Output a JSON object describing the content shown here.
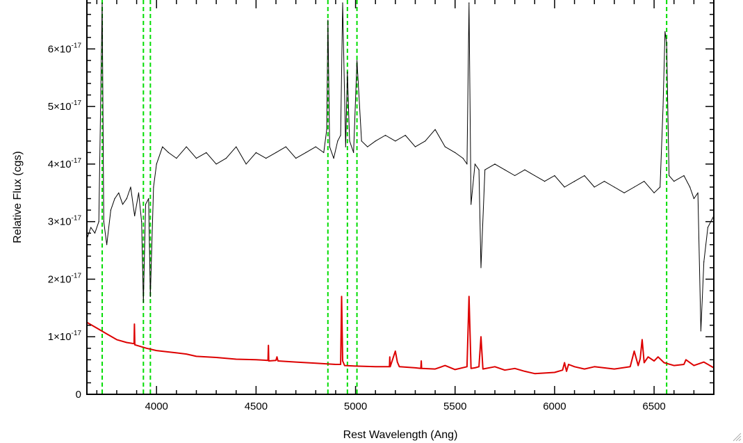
{
  "chart_data": {
    "type": "line",
    "title": "",
    "xlabel": "Rest Wavelength (Ang)",
    "ylabel": "Relative Flux (cgs)",
    "xlim": [
      3650,
      6800
    ],
    "ylim": [
      0,
      6.85e-17
    ],
    "x_ticks": [
      4000,
      4500,
      5000,
      5500,
      6000,
      6500
    ],
    "x_tick_labels": [
      "4000",
      "4500",
      "5000",
      "5500",
      "6000",
      "6500"
    ],
    "y_ticks": [
      0,
      1e-17,
      2e-17,
      3e-17,
      4e-17,
      5e-17,
      6e-17
    ],
    "y_tick_labels": [
      {
        "mantissa": "0",
        "exponent": ""
      },
      {
        "mantissa": "1×10",
        "exponent": "-17"
      },
      {
        "mantissa": "2×10",
        "exponent": "-17"
      },
      {
        "mantissa": "3×10",
        "exponent": "-17"
      },
      {
        "mantissa": "4×10",
        "exponent": "-17"
      },
      {
        "mantissa": "5×10",
        "exponent": "-17"
      },
      {
        "mantissa": "6×10",
        "exponent": "-17"
      }
    ],
    "grid": false,
    "colors": {
      "spectrum": "#000000",
      "error": "#dd0000",
      "lines": "#00dd00"
    },
    "vertical_lines_x": [
      3727,
      3934,
      3969,
      4861,
      4959,
      5007,
      6563
    ],
    "series": [
      {
        "color": "#000000",
        "x": [
          3650,
          3670,
          3690,
          3710,
          3727,
          3735,
          3750,
          3770,
          3790,
          3810,
          3830,
          3850,
          3870,
          3890,
          3910,
          3925,
          3934,
          3945,
          3960,
          3969,
          3985,
          4000,
          4030,
          4060,
          4100,
          4150,
          4200,
          4250,
          4300,
          4350,
          4400,
          4450,
          4500,
          4550,
          4600,
          4650,
          4700,
          4750,
          4800,
          4840,
          4855,
          4861,
          4870,
          4890,
          4910,
          4925,
          4935,
          4950,
          4959,
          4970,
          4990,
          5007,
          5030,
          5060,
          5100,
          5150,
          5200,
          5250,
          5300,
          5350,
          5400,
          5450,
          5500,
          5540,
          5560,
          5570,
          5580,
          5600,
          5620,
          5630,
          5650,
          5700,
          5750,
          5800,
          5850,
          5900,
          5950,
          6000,
          6050,
          6100,
          6150,
          6200,
          6250,
          6300,
          6350,
          6400,
          6450,
          6500,
          6530,
          6545,
          6555,
          6563,
          6575,
          6600,
          6650,
          6680,
          6700,
          6720,
          6735,
          6750,
          6770,
          6800
        ],
        "y": [
          2.7e-17,
          2.9e-17,
          2.8e-17,
          3e-17,
          6.8e-17,
          3e-17,
          2.6e-17,
          3.2e-17,
          3.4e-17,
          3.5e-17,
          3.3e-17,
          3.4e-17,
          3.6e-17,
          3.1e-17,
          3.5e-17,
          3e-17,
          1.6e-17,
          3.3e-17,
          3.4e-17,
          1.7e-17,
          3.6e-17,
          4e-17,
          4.3e-17,
          4.2e-17,
          4.1e-17,
          4.3e-17,
          4.1e-17,
          4.2e-17,
          4e-17,
          4.1e-17,
          4.3e-17,
          4e-17,
          4.2e-17,
          4.1e-17,
          4.2e-17,
          4.3e-17,
          4.1e-17,
          4.2e-17,
          4.3e-17,
          4.2e-17,
          4.6e-17,
          6.5e-17,
          4.3e-17,
          4.1e-17,
          4.4e-17,
          4.5e-17,
          6.8e-17,
          4.3e-17,
          5.6e-17,
          4.4e-17,
          4.2e-17,
          5.8e-17,
          4.4e-17,
          4.3e-17,
          4.4e-17,
          4.5e-17,
          4.4e-17,
          4.5e-17,
          4.3e-17,
          4.4e-17,
          4.6e-17,
          4.3e-17,
          4.2e-17,
          4.1e-17,
          4e-17,
          6.8e-17,
          3.3e-17,
          4e-17,
          3.9e-17,
          2.2e-17,
          3.9e-17,
          4e-17,
          3.9e-17,
          3.8e-17,
          3.9e-17,
          3.8e-17,
          3.7e-17,
          3.8e-17,
          3.6e-17,
          3.7e-17,
          3.8e-17,
          3.6e-17,
          3.7e-17,
          3.6e-17,
          3.5e-17,
          3.6e-17,
          3.7e-17,
          3.5e-17,
          3.6e-17,
          5e-17,
          6.3e-17,
          6.1e-17,
          3.8e-17,
          3.7e-17,
          3.8e-17,
          3.6e-17,
          3.4e-17,
          3.5e-17,
          1.1e-17,
          2.3e-17,
          2.9e-17,
          3.1e-17
        ]
      },
      {
        "color": "#dd0000",
        "x": [
          3650,
          3700,
          3750,
          3800,
          3850,
          3887,
          3889,
          3891,
          3900,
          3950,
          4000,
          4050,
          4100,
          4150,
          4200,
          4300,
          4400,
          4500,
          4560,
          4562,
          4564,
          4600,
          4605,
          4610,
          4700,
          4800,
          4900,
          4925,
          4930,
          4935,
          4945,
          5000,
          5100,
          5170,
          5172,
          5174,
          5200,
          5210,
          5220,
          5300,
          5328,
          5330,
          5332,
          5400,
          5450,
          5500,
          5560,
          5570,
          5580,
          5600,
          5620,
          5630,
          5640,
          5700,
          5750,
          5800,
          5850,
          5900,
          6000,
          6040,
          6050,
          6060,
          6070,
          6100,
          6150,
          6200,
          6300,
          6380,
          6400,
          6420,
          6430,
          6440,
          6450,
          6470,
          6500,
          6520,
          6550,
          6600,
          6650,
          6660,
          6700,
          6750,
          6800
        ],
        "y": [
          1.25e-17,
          1.15e-17,
          1.05e-17,
          9.5e-18,
          9e-18,
          8.8e-18,
          1.22e-17,
          8.6e-18,
          8.5e-18,
          8e-18,
          7.6e-18,
          7.4e-18,
          7.2e-18,
          7e-18,
          6.6e-18,
          6.4e-18,
          6.1e-18,
          6e-18,
          5.9e-18,
          8.5e-18,
          5.8e-18,
          5.9e-18,
          6.5e-18,
          5.8e-18,
          5.6e-18,
          5.4e-18,
          5.2e-18,
          5.2e-18,
          1.7e-17,
          5.8e-18,
          5e-18,
          4.9e-18,
          4.8e-18,
          4.8e-18,
          6.5e-18,
          4.8e-18,
          7.5e-18,
          5.6e-18,
          4.8e-18,
          4.6e-18,
          4.5e-18,
          5.8e-18,
          4.5e-18,
          4.4e-18,
          5e-18,
          4.3e-18,
          4.8e-18,
          1.7e-17,
          4.5e-18,
          4.6e-18,
          4.8e-18,
          1e-17,
          4.4e-18,
          4.8e-18,
          4.2e-18,
          4.5e-18,
          4e-18,
          3.6e-18,
          3.8e-18,
          4.2e-18,
          5.5e-18,
          4e-18,
          5.2e-18,
          4.8e-18,
          4.4e-18,
          4.8e-18,
          4.4e-18,
          4.8e-18,
          7.5e-18,
          5e-18,
          6.2e-18,
          9.5e-18,
          5.5e-18,
          6.5e-18,
          5.8e-18,
          6.5e-18,
          5.5e-18,
          5e-18,
          5.2e-18,
          6e-18,
          5e-18,
          5.6e-18,
          4.6e-18
        ]
      }
    ]
  }
}
